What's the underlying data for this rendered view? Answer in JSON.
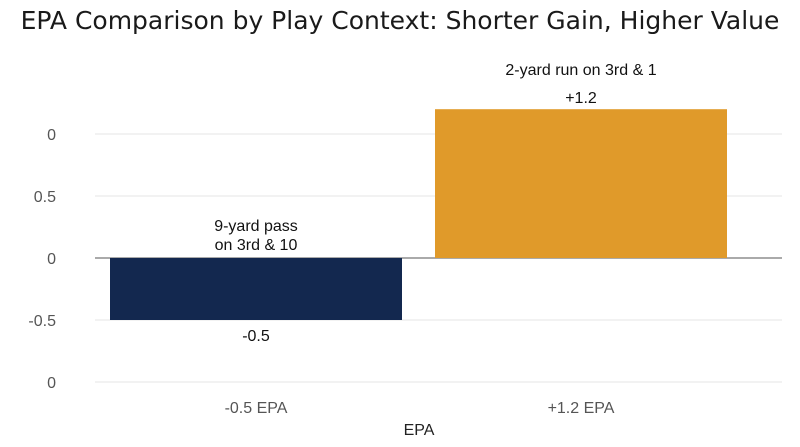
{
  "chart_data": {
    "type": "bar",
    "title": "EPA Comparison by Play Context: Shorter Gain, Higher Value",
    "xlabel": "EPA",
    "ylabel": "",
    "categories": [
      "-0.5 EPA",
      "+1.2 EPA"
    ],
    "values": [
      -0.5,
      1.2
    ],
    "y_ticks": [
      "0",
      "0.5",
      "0",
      "-0.5",
      "0"
    ],
    "data_labels": [
      "-0.5",
      "+1.2"
    ],
    "annotations": [
      {
        "category": "-0.5 EPA",
        "lines": [
          "9-yard pass",
          "on 3rd & 10"
        ]
      },
      {
        "category": "+1.2 EPA",
        "lines": [
          "2-yard run on 3rd & 1"
        ]
      }
    ],
    "colors": [
      "#13284f",
      "#e09a2a"
    ],
    "grid": true,
    "legend": "none"
  }
}
